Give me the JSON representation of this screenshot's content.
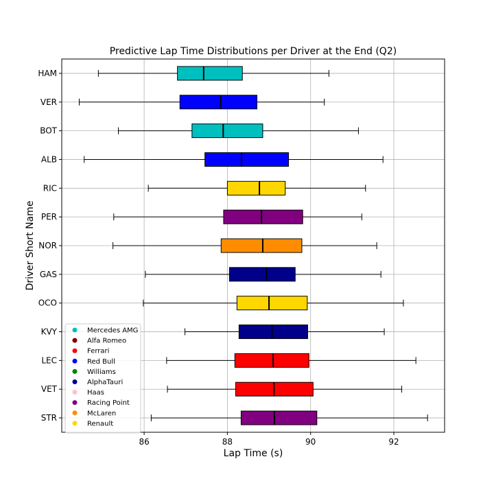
{
  "chart_data": {
    "type": "boxplot",
    "orientation": "horizontal",
    "title": "Predictive Lap Time Distributions per Driver at the End (Q2)",
    "xlabel": "Lap Time (s)",
    "ylabel": "Driver Short Name",
    "xlim": [
      84.02,
      93.22
    ],
    "xticks": [
      86,
      88,
      90,
      92
    ],
    "grid": true,
    "legend_position": "bottom-left",
    "legend": [
      {
        "name": "Mercedes AMG",
        "color": "#00bfbf"
      },
      {
        "name": "Alfa Romeo",
        "color": "#800000"
      },
      {
        "name": "Ferrari",
        "color": "#ff0000"
      },
      {
        "name": "Red Bull",
        "color": "#0000ff"
      },
      {
        "name": "Williams",
        "color": "#008000"
      },
      {
        "name": "AlphaTauri",
        "color": "#00008b"
      },
      {
        "name": "Haas",
        "color": "#ffc0cb"
      },
      {
        "name": "Racing Point",
        "color": "#800080"
      },
      {
        "name": "McLaren",
        "color": "#ff8c00"
      },
      {
        "name": "Renault",
        "color": "#ffd700"
      }
    ],
    "drivers": [
      {
        "name": "HAM",
        "team": "Mercedes AMG",
        "color": "#00bfbf",
        "min": 84.9,
        "q1": 86.8,
        "median": 87.43,
        "q3": 88.36,
        "max": 90.44
      },
      {
        "name": "VER",
        "team": "Red Bull",
        "color": "#0000ff",
        "min": 84.44,
        "q1": 86.86,
        "median": 87.84,
        "q3": 88.71,
        "max": 90.33
      },
      {
        "name": "BOT",
        "team": "Mercedes AMG",
        "color": "#00bfbf",
        "min": 85.38,
        "q1": 87.15,
        "median": 87.9,
        "q3": 88.85,
        "max": 91.15
      },
      {
        "name": "ALB",
        "team": "Red Bull",
        "color": "#0000ff",
        "min": 84.56,
        "q1": 87.46,
        "median": 88.34,
        "q3": 89.47,
        "max": 91.74
      },
      {
        "name": "RIC",
        "team": "Renault",
        "color": "#ffd700",
        "min": 86.1,
        "q1": 88.0,
        "median": 88.77,
        "q3": 89.39,
        "max": 91.32
      },
      {
        "name": "PER",
        "team": "Racing Point",
        "color": "#800080",
        "min": 85.27,
        "q1": 87.91,
        "median": 88.82,
        "q3": 89.81,
        "max": 91.23
      },
      {
        "name": "NOR",
        "team": "McLaren",
        "color": "#ff8c00",
        "min": 85.25,
        "q1": 87.85,
        "median": 88.85,
        "q3": 89.79,
        "max": 91.59
      },
      {
        "name": "GAS",
        "team": "AlphaTauri",
        "color": "#00008b",
        "min": 86.03,
        "q1": 88.05,
        "median": 88.94,
        "q3": 89.63,
        "max": 91.69
      },
      {
        "name": "OCO",
        "team": "Renault",
        "color": "#ffd700",
        "min": 85.98,
        "q1": 88.23,
        "median": 89.0,
        "q3": 89.92,
        "max": 92.23
      },
      {
        "name": "KVY",
        "team": "AlphaTauri",
        "color": "#00008b",
        "min": 86.98,
        "q1": 88.28,
        "median": 89.07,
        "q3": 89.93,
        "max": 91.77
      },
      {
        "name": "LEC",
        "team": "Ferrari",
        "color": "#ff0000",
        "min": 86.54,
        "q1": 88.18,
        "median": 89.1,
        "q3": 89.96,
        "max": 92.53
      },
      {
        "name": "VET",
        "team": "Ferrari",
        "color": "#ff0000",
        "min": 86.56,
        "q1": 88.2,
        "median": 89.12,
        "q3": 90.06,
        "max": 92.19
      },
      {
        "name": "STR",
        "team": "Racing Point",
        "color": "#800080",
        "min": 86.17,
        "q1": 88.33,
        "median": 89.13,
        "q3": 90.15,
        "max": 92.81
      }
    ]
  }
}
